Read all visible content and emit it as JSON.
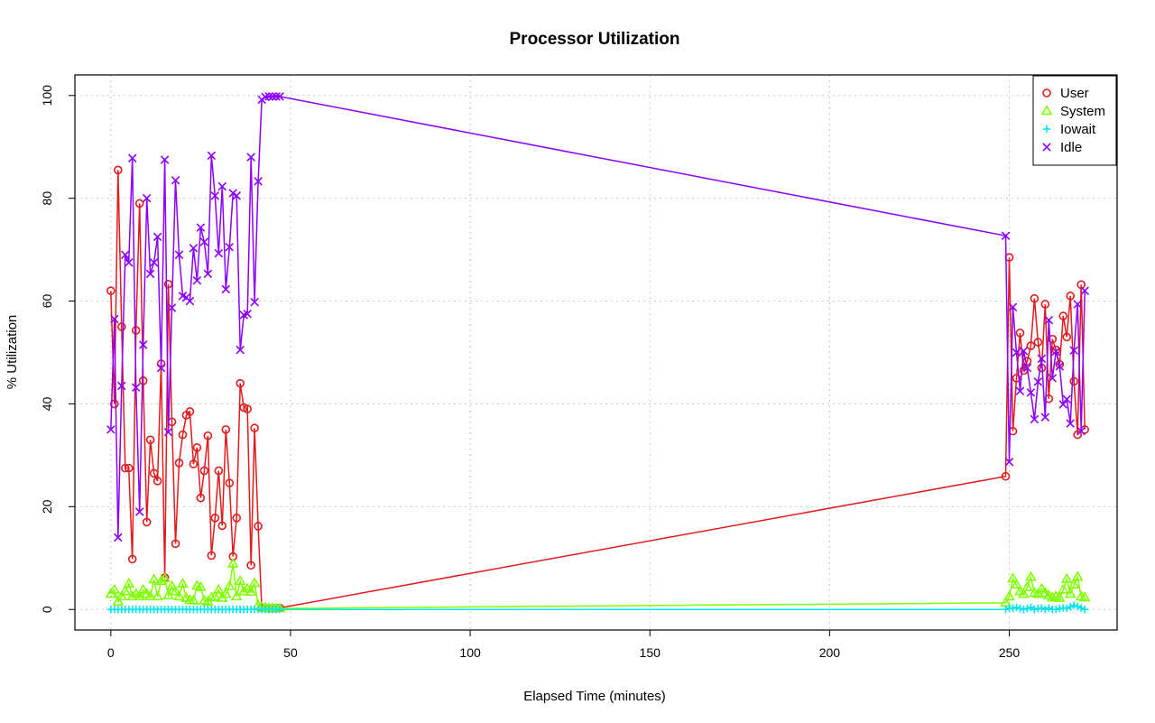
{
  "chart_data": {
    "type": "line",
    "title": "Processor Utilization",
    "xlabel": "Elapsed Time (minutes)",
    "ylabel": "% Utilization",
    "xlim": [
      -10,
      280
    ],
    "ylim": [
      -4,
      104
    ],
    "xticks": [
      0,
      50,
      100,
      150,
      200,
      250
    ],
    "yticks": [
      0,
      20,
      40,
      60,
      80,
      100
    ],
    "grid": true,
    "legend_position": "top-right",
    "series": [
      {
        "name": "User",
        "color": "#e31a1c",
        "marker": "circle",
        "x": [
          0,
          1,
          2,
          3,
          4,
          5,
          6,
          7,
          8,
          9,
          10,
          11,
          12,
          13,
          14,
          15,
          16,
          17,
          18,
          19,
          20,
          21,
          22,
          23,
          24,
          25,
          26,
          27,
          28,
          29,
          30,
          31,
          32,
          33,
          34,
          35,
          36,
          37,
          38,
          39,
          40,
          41,
          42,
          43,
          44,
          45,
          46,
          47,
          249,
          250,
          251,
          252,
          253,
          254,
          255,
          256,
          257,
          258,
          259,
          260,
          261,
          262,
          263,
          264,
          265,
          266,
          267,
          268,
          269,
          270,
          271
        ],
        "y": [
          62,
          40,
          85.5,
          55,
          27.5,
          27.5,
          9.8,
          54.3,
          79,
          44.5,
          17,
          33,
          26.5,
          25,
          47.8,
          6.2,
          63.3,
          36.5,
          12.8,
          28.5,
          34,
          37.8,
          38.5,
          28.3,
          31.5,
          21.7,
          27,
          33.8,
          10.5,
          17.8,
          27,
          16.3,
          35,
          24.6,
          10.3,
          17.8,
          44,
          39.3,
          39,
          8.6,
          35.3,
          16.2,
          0.3,
          0.3,
          0.2,
          0.2,
          0.2,
          0.3,
          25.9,
          68.5,
          34.7,
          45,
          53.8,
          46.5,
          48.3,
          51.3,
          60.5,
          52,
          47,
          59.4,
          41,
          52.6,
          50.5,
          47.7,
          57.1,
          53,
          61,
          44.4,
          34,
          63.2,
          35
        ]
      },
      {
        "name": "System",
        "color": "#7fff00",
        "marker": "triangle",
        "x": [
          0,
          1,
          2,
          3,
          4,
          5,
          6,
          7,
          8,
          9,
          10,
          11,
          12,
          13,
          14,
          15,
          16,
          17,
          18,
          19,
          20,
          21,
          22,
          23,
          24,
          25,
          26,
          27,
          28,
          29,
          30,
          31,
          32,
          33,
          34,
          35,
          36,
          37,
          38,
          39,
          40,
          41,
          42,
          43,
          44,
          45,
          46,
          47,
          249,
          250,
          251,
          252,
          253,
          254,
          255,
          256,
          257,
          258,
          259,
          260,
          261,
          262,
          263,
          264,
          265,
          266,
          267,
          268,
          269,
          270,
          271
        ],
        "y": [
          3,
          3.8,
          1.5,
          2.5,
          3.5,
          5,
          2.5,
          3,
          2.5,
          3.8,
          3,
          2.5,
          5.8,
          2.5,
          5.5,
          6,
          2.7,
          4.5,
          3.5,
          2.5,
          5,
          2.2,
          1.8,
          1.7,
          4.6,
          4.3,
          1.7,
          1.5,
          2.3,
          2.5,
          3.8,
          2.2,
          3,
          4.5,
          8.9,
          2.5,
          5.5,
          3.5,
          4,
          3.4,
          5.1,
          0.8,
          0.5,
          0.3,
          0.2,
          0.2,
          0.2,
          0.2,
          1.3,
          2.5,
          6,
          4.8,
          3.5,
          3,
          4.3,
          6.3,
          3.2,
          3,
          4,
          3.2,
          2.7,
          2.3,
          2.5,
          2.2,
          3.8,
          5.9,
          3,
          4.8,
          6.3,
          2.5,
          2.3
        ]
      },
      {
        "name": "Iowait",
        "color": "#00e5ee",
        "marker": "plus",
        "x": [
          0,
          1,
          2,
          3,
          4,
          5,
          6,
          7,
          8,
          9,
          10,
          11,
          12,
          13,
          14,
          15,
          16,
          17,
          18,
          19,
          20,
          21,
          22,
          23,
          24,
          25,
          26,
          27,
          28,
          29,
          30,
          31,
          32,
          33,
          34,
          35,
          36,
          37,
          38,
          39,
          40,
          41,
          42,
          43,
          44,
          45,
          46,
          47,
          249,
          250,
          251,
          252,
          253,
          254,
          255,
          256,
          257,
          258,
          259,
          260,
          261,
          262,
          263,
          264,
          265,
          266,
          267,
          268,
          269,
          270,
          271
        ],
        "y": [
          0,
          0,
          0,
          0,
          0,
          0,
          0,
          0,
          0,
          0,
          0,
          0,
          0,
          0,
          0,
          0,
          0,
          0,
          0,
          0,
          0,
          0,
          0,
          0,
          0,
          0,
          0,
          0,
          0,
          0,
          0,
          0,
          0,
          0,
          0,
          0,
          0,
          0,
          0,
          0,
          0,
          0,
          0,
          0,
          0,
          0,
          0,
          0,
          0,
          0.3,
          0.2,
          0.4,
          0.2,
          0,
          0.2,
          0.4,
          0,
          0.2,
          0.3,
          0,
          0.3,
          0,
          0,
          0.2,
          0.3,
          0.2,
          0.5,
          0.8,
          0.6,
          0.3,
          0
        ]
      },
      {
        "name": "Idle",
        "color": "#8b00ff",
        "marker": "cross",
        "x": [
          0,
          1,
          2,
          3,
          4,
          5,
          6,
          7,
          8,
          9,
          10,
          11,
          12,
          13,
          14,
          15,
          16,
          17,
          18,
          19,
          20,
          21,
          22,
          23,
          24,
          25,
          26,
          27,
          28,
          29,
          30,
          31,
          32,
          33,
          34,
          35,
          36,
          37,
          38,
          39,
          40,
          41,
          42,
          43,
          44,
          45,
          46,
          47,
          249,
          250,
          251,
          252,
          253,
          254,
          255,
          256,
          257,
          258,
          259,
          260,
          261,
          262,
          263,
          264,
          265,
          266,
          267,
          268,
          269,
          270,
          271
        ],
        "y": [
          35,
          56.5,
          14,
          43.5,
          69,
          67.5,
          87.8,
          43.2,
          19,
          51.5,
          80,
          65.3,
          67.5,
          72.5,
          47,
          87.5,
          34.5,
          58.7,
          83.5,
          69,
          61,
          60.7,
          60,
          70.3,
          64,
          74.3,
          71.5,
          65.3,
          88.3,
          80.5,
          69.3,
          82.3,
          62.3,
          70.5,
          81,
          80.5,
          50.5,
          57.3,
          57.5,
          88,
          59.8,
          83.3,
          99.2,
          99.7,
          99.8,
          99.8,
          99.8,
          99.8,
          72.7,
          28.7,
          58.8,
          50,
          42.5,
          50.3,
          47,
          42.2,
          37,
          44.3,
          48.8,
          37.4,
          56.3,
          45,
          50.2,
          47.3,
          39.9,
          40.9,
          36.2,
          50.4,
          59.4,
          34.7,
          62
        ]
      }
    ]
  }
}
